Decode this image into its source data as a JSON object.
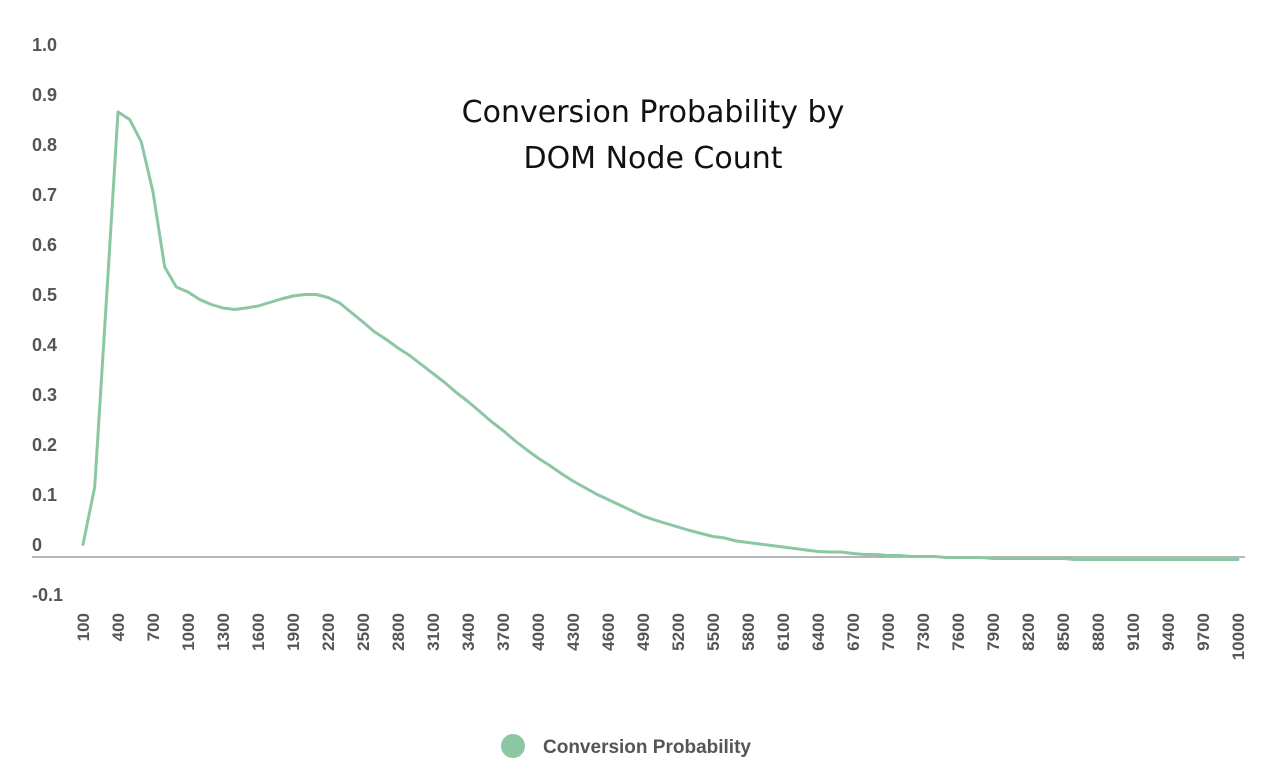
{
  "chart_data": {
    "type": "line",
    "title_lines": [
      "Conversion Probability by",
      "DOM Node Count"
    ],
    "xlabel": "",
    "ylabel": "",
    "ylim": [
      -0.1,
      1.0
    ],
    "yticks": [
      1.0,
      0.9,
      0.8,
      0.7,
      0.6,
      0.5,
      0.4,
      0.3,
      0.2,
      0.1,
      0,
      -0.1
    ],
    "ytick_labels": [
      "1.0",
      "0.9",
      "0.8",
      "0.7",
      "0.6",
      "0.5",
      "0.4",
      "0.3",
      "0.2",
      "0.1",
      "0",
      "-0.1"
    ],
    "xlim": [
      100,
      10000
    ],
    "x_tick_step": 300,
    "grid": false,
    "legend_position": "bottom-center",
    "series": [
      {
        "name": "Conversion Probability",
        "color": "#8cc7a4",
        "x": [
          100,
          200,
          300,
          400,
          500,
          600,
          700,
          800,
          900,
          1000,
          1100,
          1200,
          1300,
          1400,
          1500,
          1600,
          1700,
          1800,
          1900,
          2000,
          2100,
          2200,
          2300,
          2400,
          2500,
          2600,
          2700,
          2800,
          2900,
          3000,
          3100,
          3200,
          3300,
          3400,
          3500,
          3600,
          3700,
          3800,
          3900,
          4000,
          4100,
          4200,
          4300,
          4400,
          4500,
          4600,
          4700,
          4800,
          4900,
          5000,
          5100,
          5200,
          5300,
          5400,
          5500,
          5600,
          5700,
          5800,
          5900,
          6000,
          6100,
          6200,
          6300,
          6400,
          6500,
          6600,
          6700,
          6800,
          6900,
          7000,
          7100,
          7200,
          7300,
          7400,
          7500,
          7600,
          7700,
          7800,
          7900,
          8000,
          8100,
          8200,
          8300,
          8400,
          8500,
          8600,
          8700,
          8800,
          8900,
          9000,
          9100,
          9200,
          9300,
          9400,
          9500,
          9600,
          9700,
          9800,
          9900,
          10000
        ],
        "values": [
          0.025,
          0.14,
          0.51,
          0.89,
          0.875,
          0.83,
          0.73,
          0.58,
          0.54,
          0.53,
          0.515,
          0.505,
          0.498,
          0.495,
          0.498,
          0.502,
          0.509,
          0.516,
          0.522,
          0.525,
          0.525,
          0.519,
          0.508,
          0.489,
          0.47,
          0.45,
          0.435,
          0.418,
          0.403,
          0.385,
          0.367,
          0.349,
          0.329,
          0.311,
          0.291,
          0.271,
          0.253,
          0.233,
          0.215,
          0.198,
          0.183,
          0.167,
          0.152,
          0.139,
          0.126,
          0.115,
          0.104,
          0.093,
          0.082,
          0.074,
          0.067,
          0.06,
          0.053,
          0.047,
          0.041,
          0.038,
          0.032,
          0.029,
          0.026,
          0.023,
          0.02,
          0.017,
          0.014,
          0.011,
          0.01,
          0.01,
          0.007,
          0.005,
          0.005,
          0.003,
          0.003,
          0.001,
          0.001,
          0.001,
          -0.001,
          -0.001,
          -0.001,
          -0.001,
          -0.003,
          -0.003,
          -0.003,
          -0.003,
          -0.003,
          -0.003,
          -0.003,
          -0.005,
          -0.005,
          -0.005,
          -0.005,
          -0.005,
          -0.005,
          -0.005,
          -0.005,
          -0.005,
          -0.005,
          -0.005,
          -0.005,
          -0.005,
          -0.005,
          -0.005
        ]
      }
    ]
  }
}
